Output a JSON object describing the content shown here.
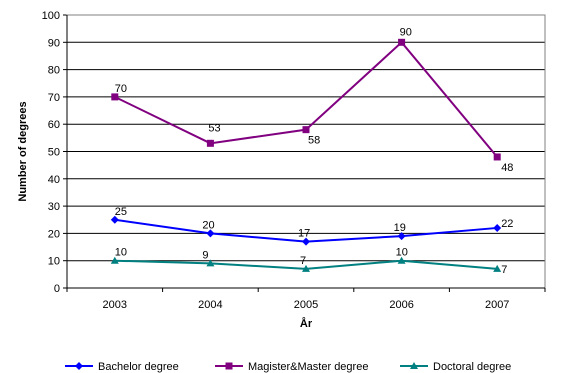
{
  "chart_data": {
    "type": "line",
    "x": [
      "2003",
      "2004",
      "2005",
      "2006",
      "2007"
    ],
    "xlabel": "År",
    "ylabel": "Number of degrees",
    "ylim": [
      0,
      100
    ],
    "yticks": [
      0,
      10,
      20,
      30,
      40,
      50,
      60,
      70,
      80,
      90,
      100
    ],
    "grid": true,
    "legend_position": "bottom",
    "series": [
      {
        "name": "Bachelor degree",
        "values": [
          25,
          20,
          17,
          19,
          22
        ],
        "color": "#0000ff",
        "marker": "diamond"
      },
      {
        "name": "Magister&Master degree",
        "values": [
          70,
          53,
          58,
          90,
          48
        ],
        "color": "#800080",
        "marker": "square"
      },
      {
        "name": "Doctoral degree",
        "values": [
          10,
          9,
          7,
          10,
          7
        ],
        "color": "#008080",
        "marker": "triangle"
      }
    ]
  }
}
